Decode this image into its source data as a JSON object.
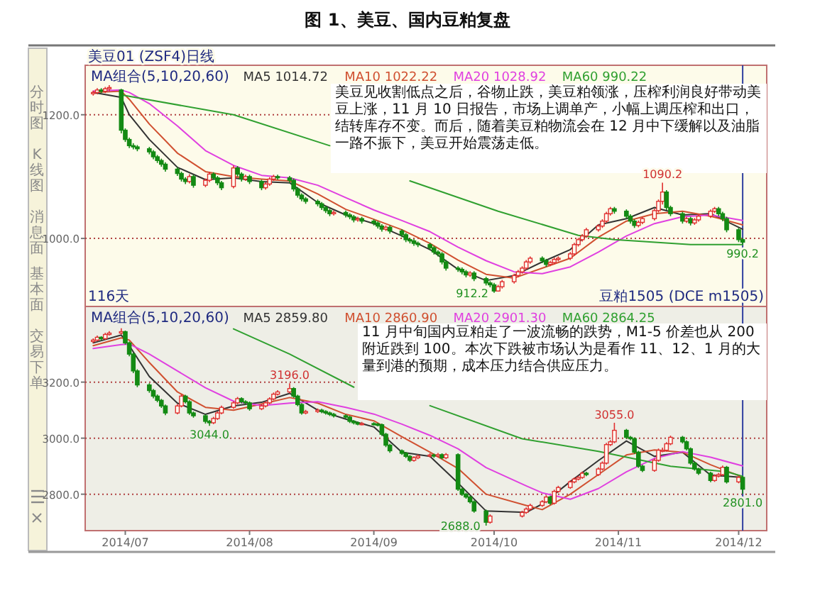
{
  "chart_data": [
    {
      "type": "candlestick",
      "title": "图 1、美豆、国内豆粕复盘",
      "subtitle": "美豆01 (ZSF4)日线",
      "legend_title": "MA组合(5,10,20,60)",
      "legend": "top left",
      "grid": "y",
      "tick_labels": "y",
      "x": [
        "2014-06-23",
        "2014-06-24",
        "2014-06-25",
        "2014-06-26",
        "2014-06-27",
        "2014-06-30",
        "2014-07-01",
        "2014-07-02",
        "2014-07-03",
        "2014-07-04",
        "2014-07-07",
        "2014-07-08",
        "2014-07-09",
        "2014-07-10",
        "2014-07-11",
        "2014-07-14",
        "2014-07-15",
        "2014-07-16",
        "2014-07-17",
        "2014-07-18",
        "2014-07-21",
        "2014-07-22",
        "2014-07-23",
        "2014-07-24",
        "2014-07-25",
        "2014-07-28",
        "2014-07-29",
        "2014-07-30",
        "2014-07-31",
        "2014-08-01",
        "2014-08-04",
        "2014-08-05",
        "2014-08-06",
        "2014-08-07",
        "2014-08-08",
        "2014-08-11",
        "2014-08-12",
        "2014-08-13",
        "2014-08-14",
        "2014-08-15",
        "2014-08-18",
        "2014-08-19",
        "2014-08-20",
        "2014-08-21",
        "2014-08-22",
        "2014-08-25",
        "2014-08-26",
        "2014-08-27",
        "2014-08-28",
        "2014-08-29",
        "2014-09-01",
        "2014-09-02",
        "2014-09-03",
        "2014-09-04",
        "2014-09-05",
        "2014-09-08",
        "2014-09-09",
        "2014-09-10",
        "2014-09-11",
        "2014-09-12",
        "2014-09-15",
        "2014-09-16",
        "2014-09-17",
        "2014-09-18",
        "2014-09-19",
        "2014-09-22",
        "2014-09-23",
        "2014-09-24",
        "2014-09-25",
        "2014-09-26",
        "2014-09-29",
        "2014-09-30",
        "2014-10-01",
        "2014-10-02",
        "2014-10-03",
        "2014-10-06",
        "2014-10-07",
        "2014-10-08",
        "2014-10-09",
        "2014-10-10",
        "2014-10-13",
        "2014-10-14",
        "2014-10-15",
        "2014-10-16",
        "2014-10-17",
        "2014-10-20",
        "2014-10-21",
        "2014-10-22",
        "2014-10-23",
        "2014-10-24",
        "2014-10-27",
        "2014-10-28",
        "2014-10-29",
        "2014-10-30",
        "2014-10-31",
        "2014-11-03",
        "2014-11-04",
        "2014-11-05",
        "2014-11-06",
        "2014-11-07",
        "2014-11-10",
        "2014-11-11",
        "2014-11-12",
        "2014-11-13",
        "2014-11-14",
        "2014-11-17",
        "2014-11-18",
        "2014-11-19",
        "2014-11-20",
        "2014-11-21",
        "2014-11-24",
        "2014-11-25",
        "2014-11-26",
        "2014-11-27",
        "2014-11-28",
        "2014-12-01",
        "2014-12-02"
      ],
      "ohlc": [
        [
          1234,
          1239,
          1231,
          1236
        ],
        [
          1236,
          1243,
          1233,
          1240
        ],
        [
          1240,
          1243,
          1235,
          1238
        ],
        [
          1238,
          1245,
          1235,
          1242
        ],
        [
          1242,
          1248,
          1238,
          1244
        ],
        [
          1240,
          1242,
          1170,
          1175
        ],
        [
          1175,
          1178,
          1156,
          1160
        ],
        [
          1160,
          1163,
          1146,
          1150
        ],
        [
          1150,
          1154,
          1144,
          1148
        ],
        [
          1148,
          1151,
          1141,
          1145
        ],
        [
          1145,
          1148,
          1136,
          1140
        ],
        [
          1140,
          1143,
          1128,
          1132
        ],
        [
          1132,
          1135,
          1122,
          1126
        ],
        [
          1126,
          1129,
          1116,
          1120
        ],
        [
          1120,
          1123,
          1108,
          1112
        ],
        [
          1112,
          1115,
          1101,
          1105
        ],
        [
          1105,
          1108,
          1092,
          1096
        ],
        [
          1096,
          1099,
          1088,
          1092
        ],
        [
          1092,
          1104,
          1089,
          1100
        ],
        [
          1100,
          1103,
          1082,
          1086
        ],
        [
          1086,
          1097,
          1083,
          1094
        ],
        [
          1094,
          1108,
          1091,
          1104
        ],
        [
          1104,
          1107,
          1095,
          1098
        ],
        [
          1098,
          1101,
          1086,
          1090
        ],
        [
          1090,
          1093,
          1078,
          1082
        ],
        [
          1084,
          1118,
          1081,
          1114
        ],
        [
          1114,
          1117,
          1100,
          1104
        ],
        [
          1104,
          1107,
          1092,
          1096
        ],
        [
          1096,
          1103,
          1093,
          1100
        ],
        [
          1100,
          1103,
          1088,
          1092
        ],
        [
          1092,
          1095,
          1078,
          1082
        ],
        [
          1082,
          1091,
          1079,
          1088
        ],
        [
          1088,
          1099,
          1085,
          1096
        ],
        [
          1096,
          1103,
          1093,
          1100
        ],
        [
          1100,
          1103,
          1095,
          1098
        ],
        [
          1098,
          1101,
          1090,
          1094
        ],
        [
          1094,
          1097,
          1076,
          1080
        ],
        [
          1080,
          1083,
          1066,
          1070
        ],
        [
          1070,
          1073,
          1060,
          1064
        ],
        [
          1064,
          1067,
          1056,
          1060
        ],
        [
          1060,
          1063,
          1052,
          1056
        ],
        [
          1056,
          1059,
          1046,
          1050
        ],
        [
          1050,
          1053,
          1041,
          1045
        ],
        [
          1045,
          1048,
          1036,
          1040
        ],
        [
          1040,
          1045,
          1037,
          1042
        ],
        [
          1042,
          1045,
          1034,
          1038
        ],
        [
          1038,
          1041,
          1031,
          1035
        ],
        [
          1035,
          1038,
          1026,
          1030
        ],
        [
          1030,
          1035,
          1027,
          1032
        ],
        [
          1032,
          1035,
          1024,
          1028
        ],
        [
          1028,
          1031,
          1021,
          1025
        ],
        [
          1025,
          1028,
          1016,
          1020
        ],
        [
          1020,
          1023,
          1011,
          1015
        ],
        [
          1015,
          1021,
          1012,
          1018
        ],
        [
          1018,
          1021,
          1008,
          1012
        ],
        [
          1012,
          1015,
          1002,
          1006
        ],
        [
          1006,
          1009,
          994,
          998
        ],
        [
          998,
          1001,
          992,
          996
        ],
        [
          996,
          999,
          988,
          992
        ],
        [
          992,
          995,
          986,
          990
        ],
        [
          990,
          993,
          981,
          985
        ],
        [
          985,
          988,
          974,
          978
        ],
        [
          978,
          981,
          971,
          975
        ],
        [
          975,
          978,
          958,
          962
        ],
        [
          962,
          965,
          948,
          952
        ],
        [
          952,
          955,
          946,
          950
        ],
        [
          950,
          953,
          942,
          946
        ],
        [
          946,
          949,
          937,
          941
        ],
        [
          941,
          947,
          938,
          944
        ],
        [
          944,
          947,
          931,
          935
        ],
        [
          935,
          938,
          924,
          928
        ],
        [
          928,
          931,
          921,
          925
        ],
        [
          925,
          928,
          912.2,
          915
        ],
        [
          915,
          925,
          914,
          922
        ],
        [
          922,
          933,
          919,
          930
        ],
        [
          930,
          943,
          927,
          940
        ],
        [
          940,
          949,
          937,
          946
        ],
        [
          946,
          955,
          943,
          952
        ],
        [
          952,
          965,
          949,
          962
        ],
        [
          962,
          971,
          959,
          968
        ],
        [
          968,
          971,
          960,
          964
        ],
        [
          964,
          967,
          954,
          958
        ],
        [
          958,
          964,
          955,
          961
        ],
        [
          961,
          969,
          958,
          966
        ],
        [
          966,
          971,
          963,
          968
        ],
        [
          968,
          978,
          965,
          975
        ],
        [
          975,
          993,
          972,
          990
        ],
        [
          990,
          1001,
          987,
          998
        ],
        [
          998,
          1007,
          995,
          1004
        ],
        [
          1004,
          1017,
          1001,
          1014
        ],
        [
          1014,
          1023,
          1011,
          1020
        ],
        [
          1020,
          1031,
          1017,
          1028
        ],
        [
          1028,
          1043,
          1025,
          1040
        ],
        [
          1040,
          1051,
          1037,
          1048
        ],
        [
          1048,
          1051,
          1040,
          1044
        ],
        [
          1044,
          1047,
          1032,
          1036
        ],
        [
          1036,
          1039,
          1024,
          1028
        ],
        [
          1028,
          1031,
          1017,
          1021
        ],
        [
          1021,
          1029,
          1018,
          1026
        ],
        [
          1026,
          1035,
          1023,
          1032
        ],
        [
          1032,
          1048,
          1029,
          1045
        ],
        [
          1045,
          1063,
          1042,
          1060
        ],
        [
          1060,
          1090.2,
          1055,
          1075
        ],
        [
          1075,
          1078,
          1046,
          1050
        ],
        [
          1050,
          1053,
          1036,
          1040
        ],
        [
          1040,
          1043,
          1024,
          1028
        ],
        [
          1028,
          1035,
          1025,
          1032
        ],
        [
          1032,
          1035,
          1021,
          1025
        ],
        [
          1025,
          1033,
          1022,
          1030
        ],
        [
          1030,
          1039,
          1027,
          1036
        ],
        [
          1036,
          1047,
          1033,
          1044
        ],
        [
          1044,
          1051,
          1041,
          1048
        ],
        [
          1048,
          1051,
          1036,
          1040
        ],
        [
          1040,
          1043,
          1028,
          1032
        ],
        [
          1032,
          1035,
          1010,
          1014
        ],
        [
          1014,
          1017,
          994,
          998
        ],
        [
          998,
          1001,
          990.2,
          994
        ]
      ],
      "xticks": [
        {
          "value": "2014-07-01",
          "label": null
        },
        {
          "value": "2014-08-01",
          "label": null
        },
        {
          "value": "2014-09-01",
          "label": null
        },
        {
          "value": "2014-10-01",
          "label": null
        },
        {
          "value": "2014-11-01",
          "label": null
        },
        {
          "value": "2014-12-01",
          "label": null
        }
      ],
      "series": [
        {
          "type": "line",
          "name": "MA5 1014.72",
          "color": "#333333",
          "x": [
            "2014-06-23",
            "2014-06-30",
            "2014-07-02",
            "2014-07-07",
            "2014-07-14",
            "2014-07-21",
            "2014-07-28",
            "2014-08-04",
            "2014-08-11",
            "2014-08-18",
            "2014-08-25",
            "2014-09-01",
            "2014-09-08",
            "2014-09-15",
            "2014-09-22",
            "2014-09-29",
            "2014-10-06",
            "2014-10-13",
            "2014-10-20",
            "2014-10-27",
            "2014-11-03",
            "2014-11-10",
            "2014-11-17",
            "2014-11-24",
            "2014-12-02"
          ],
          "values": [
            1236,
            1228,
            1200,
            1160,
            1115,
            1095,
            1098,
            1092,
            1090,
            1058,
            1038,
            1024,
            1004,
            982,
            950,
            932,
            940,
            962,
            982,
            1022,
            1032,
            1050,
            1038,
            1040,
            1015
          ]
        },
        {
          "type": "line",
          "name": "MA10 1022.22",
          "color": "#d05030",
          "x": [
            "2014-06-23",
            "2014-06-30",
            "2014-07-02",
            "2014-07-07",
            "2014-07-14",
            "2014-07-21",
            "2014-07-28",
            "2014-08-04",
            "2014-08-11",
            "2014-08-18",
            "2014-08-25",
            "2014-09-01",
            "2014-09-08",
            "2014-09-15",
            "2014-09-22",
            "2014-09-29",
            "2014-10-06",
            "2014-10-13",
            "2014-10-20",
            "2014-10-27",
            "2014-11-03",
            "2014-11-10",
            "2014-11-17",
            "2014-11-24",
            "2014-12-02"
          ],
          "values": [
            1236,
            1238,
            1225,
            1185,
            1138,
            1108,
            1100,
            1096,
            1093,
            1072,
            1047,
            1031,
            1014,
            992,
            965,
            942,
            936,
            952,
            968,
            1002,
            1028,
            1040,
            1044,
            1036,
            1022
          ]
        },
        {
          "type": "line",
          "name": "MA20 1028.92",
          "color": "#e040e0",
          "x": [
            "2014-06-23",
            "2014-06-30",
            "2014-07-02",
            "2014-07-07",
            "2014-07-14",
            "2014-07-21",
            "2014-07-28",
            "2014-08-04",
            "2014-08-11",
            "2014-08-18",
            "2014-08-25",
            "2014-09-01",
            "2014-09-08",
            "2014-09-15",
            "2014-09-22",
            "2014-09-29",
            "2014-10-06",
            "2014-10-13",
            "2014-10-20",
            "2014-10-27",
            "2014-11-03",
            "2014-11-10",
            "2014-11-17",
            "2014-11-24",
            "2014-12-02"
          ],
          "values": [
            1238,
            1240,
            1236,
            1218,
            1182,
            1142,
            1118,
            1102,
            1098,
            1086,
            1066,
            1046,
            1029,
            1011,
            986,
            964,
            946,
            943,
            954,
            978,
            1004,
            1024,
            1035,
            1038,
            1029
          ]
        },
        {
          "type": "line",
          "name": "MA60 990.22",
          "color": "#30a030",
          "x": [
            "2014-06-30",
            "2014-07-28",
            "2014-08-21",
            "2014-08-25",
            "2014-09-10",
            "2014-10-02",
            "2014-10-22",
            "2014-10-31",
            "2014-11-19",
            "2014-12-02"
          ],
          "values": [
            1232,
            1200,
            1150,
            null,
            1093,
            1044,
            1005,
            998,
            990,
            990
          ]
        }
      ],
      "xlim": [
        "2014-06-21",
        "2014-12-08"
      ],
      "ylim": [
        890,
        1280
      ],
      "yticks": [
        {
          "value": 1000,
          "label": "1000.0"
        },
        {
          "value": 1200,
          "label": "1200.0"
        }
      ],
      "ref_lines": [
        {
          "axis": "x",
          "value": "2014-12-02",
          "color": "#3040a0"
        }
      ],
      "annotations": [
        "美豆见收割低点之后，谷物止跌，美豆粕领涨，压榨利润良好带动美豆上涨，11 月 10 日报告，市场上调单产，小幅上调压榨和出口，结转库存不变。而后，随着美豆粕物流会在 12 月中下缓解以及油脂一路不振下，美豆开始震荡走低。",
        "116天",
        "分时图",
        "K线图",
        "消息面",
        "基本面",
        {
          "text": "1090.2",
          "x": "2014-11-12",
          "y": 1090.2
        },
        {
          "text": "912.2",
          "x": "2014-10-01",
          "y": 912.2
        },
        {
          "text": "990.2",
          "x": "2014-12-02",
          "y": 990.2
        }
      ]
    },
    {
      "type": "candlestick",
      "subtitle": "豆粕1505 (DCE m1505)",
      "legend_title": "MA组合(5,10,20,60)",
      "legend": "top left",
      "grid": "y",
      "x": [
        "2014-06-23",
        "2014-06-24",
        "2014-06-25",
        "2014-06-26",
        "2014-06-27",
        "2014-06-30",
        "2014-07-01",
        "2014-07-02",
        "2014-07-03",
        "2014-07-04",
        "2014-07-07",
        "2014-07-08",
        "2014-07-09",
        "2014-07-10",
        "2014-07-11",
        "2014-07-14",
        "2014-07-15",
        "2014-07-16",
        "2014-07-17",
        "2014-07-18",
        "2014-07-21",
        "2014-07-22",
        "2014-07-23",
        "2014-07-24",
        "2014-07-25",
        "2014-07-28",
        "2014-07-29",
        "2014-07-30",
        "2014-07-31",
        "2014-08-01",
        "2014-08-04",
        "2014-08-05",
        "2014-08-06",
        "2014-08-07",
        "2014-08-08",
        "2014-08-11",
        "2014-08-12",
        "2014-08-13",
        "2014-08-14",
        "2014-08-15",
        "2014-08-18",
        "2014-08-19",
        "2014-08-20",
        "2014-08-21",
        "2014-08-22",
        "2014-08-25",
        "2014-08-26",
        "2014-08-27",
        "2014-08-28",
        "2014-08-29",
        "2014-09-01",
        "2014-09-02",
        "2014-09-03",
        "2014-09-04",
        "2014-09-05",
        "2014-09-08",
        "2014-09-09",
        "2014-09-10",
        "2014-09-11",
        "2014-09-12",
        "2014-09-15",
        "2014-09-16",
        "2014-09-17",
        "2014-09-18",
        "2014-09-19",
        "2014-09-22",
        "2014-09-23",
        "2014-09-24",
        "2014-09-25",
        "2014-09-26",
        "2014-09-29",
        "2014-09-30",
        "2014-10-08",
        "2014-10-09",
        "2014-10-10",
        "2014-10-13",
        "2014-10-14",
        "2014-10-15",
        "2014-10-16",
        "2014-10-17",
        "2014-10-20",
        "2014-10-21",
        "2014-10-22",
        "2014-10-23",
        "2014-10-24",
        "2014-10-27",
        "2014-10-28",
        "2014-10-29",
        "2014-10-30",
        "2014-10-31",
        "2014-11-03",
        "2014-11-04",
        "2014-11-05",
        "2014-11-06",
        "2014-11-07",
        "2014-11-10",
        "2014-11-11",
        "2014-11-12",
        "2014-11-13",
        "2014-11-14",
        "2014-11-17",
        "2014-11-18",
        "2014-11-19",
        "2014-11-20",
        "2014-11-21",
        "2014-11-24",
        "2014-11-25",
        "2014-11-26",
        "2014-11-27",
        "2014-11-28",
        "2014-12-01",
        "2014-12-02"
      ],
      "ohlc": [
        [
          3345,
          3356,
          3340,
          3350
        ],
        [
          3350,
          3366,
          3346,
          3360
        ],
        [
          3360,
          3364,
          3348,
          3355
        ],
        [
          3355,
          3376,
          3351,
          3370
        ],
        [
          3370,
          3382,
          3366,
          3375
        ],
        [
          3375,
          3392,
          3370,
          3380
        ],
        [
          3380,
          3384,
          3334,
          3340
        ],
        [
          3340,
          3345,
          3292,
          3300
        ],
        [
          3300,
          3305,
          3232,
          3240
        ],
        [
          3240,
          3246,
          3182,
          3190
        ],
        [
          3190,
          3196,
          3162,
          3170
        ],
        [
          3170,
          3176,
          3142,
          3150
        ],
        [
          3150,
          3156,
          3128,
          3135
        ],
        [
          3135,
          3140,
          3108,
          3115
        ],
        [
          3115,
          3120,
          3082,
          3090
        ],
        [
          3090,
          3122,
          3085,
          3115
        ],
        [
          3115,
          3156,
          3110,
          3150
        ],
        [
          3150,
          3155,
          3124,
          3130
        ],
        [
          3130,
          3135,
          3083,
          3090
        ],
        [
          3090,
          3095,
          3073,
          3080
        ],
        [
          3080,
          3085,
          3052,
          3060
        ],
        [
          3060,
          3065,
          3044,
          3055
        ],
        [
          3055,
          3076,
          3050,
          3070
        ],
        [
          3070,
          3096,
          3065,
          3090
        ],
        [
          3090,
          3116,
          3085,
          3110
        ],
        [
          3110,
          3132,
          3105,
          3126
        ],
        [
          3126,
          3147,
          3121,
          3141
        ],
        [
          3141,
          3146,
          3124,
          3130
        ],
        [
          3130,
          3135,
          3120,
          3126
        ],
        [
          3126,
          3131,
          3098,
          3105
        ],
        [
          3105,
          3121,
          3100,
          3115
        ],
        [
          3115,
          3132,
          3110,
          3126
        ],
        [
          3126,
          3146,
          3121,
          3140
        ],
        [
          3140,
          3163,
          3135,
          3157
        ],
        [
          3157,
          3171,
          3152,
          3165
        ],
        [
          3165,
          3196,
          3160,
          3177
        ],
        [
          3177,
          3182,
          3144,
          3150
        ],
        [
          3150,
          3155,
          3114,
          3120
        ],
        [
          3120,
          3125,
          3084,
          3090
        ],
        [
          3090,
          3101,
          3085,
          3095
        ],
        [
          3095,
          3106,
          3090,
          3100
        ],
        [
          3100,
          3105,
          3089,
          3095
        ],
        [
          3095,
          3100,
          3084,
          3090
        ],
        [
          3090,
          3095,
          3079,
          3085
        ],
        [
          3085,
          3090,
          3074,
          3080
        ],
        [
          3080,
          3085,
          3069,
          3075
        ],
        [
          3075,
          3080,
          3054,
          3060
        ],
        [
          3060,
          3065,
          3049,
          3055
        ],
        [
          3055,
          3060,
          3046,
          3050
        ],
        [
          3050,
          3058,
          3046,
          3052
        ],
        [
          3052,
          3057,
          3045,
          3050
        ],
        [
          3050,
          3055,
          3042,
          3048
        ],
        [
          3048,
          3052,
          3008,
          3014
        ],
        [
          3014,
          3019,
          2968,
          2975
        ],
        [
          2975,
          2980,
          2948,
          2955
        ],
        [
          2955,
          2960,
          2940,
          2946
        ],
        [
          2946,
          2951,
          2929,
          2935
        ],
        [
          2935,
          2940,
          2915,
          2921
        ],
        [
          2921,
          2936,
          2916,
          2930
        ],
        [
          2930,
          2942,
          2925,
          2936
        ],
        [
          2936,
          2946,
          2931,
          2940
        ],
        [
          2940,
          2945,
          2930,
          2936
        ],
        [
          2936,
          2947,
          2931,
          2941
        ],
        [
          2941,
          2946,
          2925,
          2930
        ],
        [
          2930,
          2947,
          2925,
          2941
        ],
        [
          2941,
          2946,
          2812,
          2818
        ],
        [
          2818,
          2823,
          2794,
          2800
        ],
        [
          2800,
          2805,
          2784,
          2790
        ],
        [
          2790,
          2795,
          2767,
          2773
        ],
        [
          2773,
          2778,
          2734,
          2740
        ],
        [
          2740,
          2745,
          2688,
          2700
        ],
        [
          2700,
          2728,
          2695,
          2722
        ],
        [
          2722,
          2741,
          2717,
          2735
        ],
        [
          2735,
          2753,
          2730,
          2747
        ],
        [
          2747,
          2766,
          2742,
          2760
        ],
        [
          2760,
          2779,
          2755,
          2773
        ],
        [
          2773,
          2796,
          2768,
          2790
        ],
        [
          2790,
          2795,
          2762,
          2768
        ],
        [
          2768,
          2816,
          2763,
          2810
        ],
        [
          2810,
          2830,
          2805,
          2824
        ],
        [
          2824,
          2850,
          2819,
          2844
        ],
        [
          2844,
          2860,
          2839,
          2854
        ],
        [
          2854,
          2866,
          2849,
          2860
        ],
        [
          2860,
          2881,
          2855,
          2875
        ],
        [
          2875,
          2880,
          2864,
          2870
        ],
        [
          2870,
          2896,
          2865,
          2890
        ],
        [
          2890,
          2917,
          2885,
          2911
        ],
        [
          2911,
          2983,
          2906,
          2977
        ],
        [
          2977,
          2993,
          2972,
          2987
        ],
        [
          2987,
          3055,
          2982,
          3028
        ],
        [
          3028,
          3033,
          2997,
          3003
        ],
        [
          3003,
          3008,
          2992,
          2998
        ],
        [
          2998,
          3003,
          2944,
          2950
        ],
        [
          2950,
          2955,
          2894,
          2900
        ],
        [
          2900,
          2905,
          2879,
          2885
        ],
        [
          2885,
          2927,
          2880,
          2921
        ],
        [
          2921,
          2963,
          2916,
          2957
        ],
        [
          2957,
          2966,
          2950,
          2957
        ],
        [
          2957,
          2986,
          2952,
          2980
        ],
        [
          2980,
          3009,
          2975,
          3003
        ],
        [
          3003,
          3008,
          2981,
          2987
        ],
        [
          2987,
          2992,
          2956,
          2962
        ],
        [
          2962,
          2967,
          2905,
          2911
        ],
        [
          2911,
          2916,
          2884,
          2890
        ],
        [
          2890,
          2895,
          2869,
          2875
        ],
        [
          2875,
          2880,
          2843,
          2849
        ],
        [
          2849,
          2871,
          2844,
          2865
        ],
        [
          2865,
          2876,
          2860,
          2870
        ],
        [
          2870,
          2902,
          2865,
          2896
        ],
        [
          2896,
          2901,
          2838,
          2844
        ],
        [
          2844,
          2866,
          2839,
          2860
        ],
        [
          2860,
          2865,
          2801,
          2818
        ]
      ],
      "series": [
        {
          "type": "line",
          "name": "MA5 2859.80",
          "color": "#333333",
          "x": [
            "2014-06-23",
            "2014-06-30",
            "2014-07-02",
            "2014-07-07",
            "2014-07-14",
            "2014-07-21",
            "2014-07-28",
            "2014-08-04",
            "2014-08-11",
            "2014-08-18",
            "2014-08-25",
            "2014-09-01",
            "2014-09-08",
            "2014-09-15",
            "2014-09-22",
            "2014-09-29",
            "2014-10-09",
            "2014-10-13",
            "2014-10-20",
            "2014-10-27",
            "2014-11-03",
            "2014-11-10",
            "2014-11-17",
            "2014-11-24",
            "2014-12-02"
          ],
          "values": [
            3340,
            3368,
            3330,
            3220,
            3125,
            3085,
            3115,
            3128,
            3160,
            3100,
            3068,
            3040,
            2950,
            2935,
            2840,
            2740,
            2735,
            2765,
            2845,
            2920,
            2990,
            2935,
            2950,
            2868,
            2860
          ]
        },
        {
          "type": "line",
          "name": "MA10 2860.90",
          "color": "#d05030",
          "x": [
            "2014-06-23",
            "2014-06-30",
            "2014-07-02",
            "2014-07-07",
            "2014-07-14",
            "2014-07-21",
            "2014-07-28",
            "2014-08-04",
            "2014-08-11",
            "2014-08-18",
            "2014-08-25",
            "2014-09-01",
            "2014-09-08",
            "2014-09-15",
            "2014-09-22",
            "2014-09-29",
            "2014-10-09",
            "2014-10-13",
            "2014-10-20",
            "2014-10-27",
            "2014-11-03",
            "2014-11-10",
            "2014-11-17",
            "2014-11-24",
            "2014-12-02"
          ],
          "values": [
            3330,
            3358,
            3350,
            3270,
            3165,
            3110,
            3100,
            3122,
            3145,
            3125,
            3085,
            3062,
            3005,
            2950,
            2892,
            2800,
            2760,
            2745,
            2800,
            2870,
            2940,
            2958,
            2950,
            2905,
            2861
          ]
        },
        {
          "type": "line",
          "name": "MA20 2901.30",
          "color": "#e040e0",
          "x": [
            "2014-06-23",
            "2014-06-30",
            "2014-07-02",
            "2014-07-07",
            "2014-07-14",
            "2014-07-21",
            "2014-07-28",
            "2014-08-04",
            "2014-08-11",
            "2014-08-18",
            "2014-08-25",
            "2014-09-01",
            "2014-09-08",
            "2014-09-15",
            "2014-09-22",
            "2014-09-29",
            "2014-10-09",
            "2014-10-13",
            "2014-10-20",
            "2014-10-27",
            "2014-11-03",
            "2014-11-10",
            "2014-11-17",
            "2014-11-24",
            "2014-12-02"
          ],
          "values": [
            3320,
            3334,
            3336,
            3300,
            3240,
            3180,
            3132,
            3116,
            3125,
            3130,
            3110,
            3086,
            3050,
            3010,
            2962,
            2895,
            2830,
            2805,
            2782,
            2820,
            2880,
            2928,
            2952,
            2932,
            2901
          ]
        },
        {
          "type": "line",
          "name": "MA60 2864.25",
          "color": "#30a030",
          "x": [
            "2014-07-28",
            "2014-08-11",
            "2014-08-27",
            "2014-08-28",
            "2014-09-15",
            "2014-10-08",
            "2014-10-27",
            "2014-11-14",
            "2014-11-28",
            "2014-12-02"
          ],
          "values": [
            3390,
            3300,
            3182,
            null,
            3116,
            2998,
            2953,
            2900,
            2880,
            2864
          ]
        }
      ],
      "xlim": [
        "2014-06-21",
        "2014-12-08"
      ],
      "xticks": [
        {
          "value": "2014-07-01",
          "label": "2014/07"
        },
        {
          "value": "2014-08-01",
          "label": "2014/08"
        },
        {
          "value": "2014-09-01",
          "label": "2014/09"
        },
        {
          "value": "2014-10-01",
          "label": "2014/10"
        },
        {
          "value": "2014-11-01",
          "label": "2014/11"
        },
        {
          "value": "2014-12-01",
          "label": "2014/12"
        }
      ],
      "ylim": [
        2670,
        3470
      ],
      "yticks": [
        {
          "value": 2800,
          "label": "2800.0"
        },
        {
          "value": 3000,
          "label": "3000.0"
        },
        {
          "value": 3200,
          "label": "3200.0"
        }
      ],
      "ref_lines": [
        {
          "axis": "x",
          "value": "2014-12-02",
          "color": "#3040a0"
        }
      ],
      "annotations": [
        "11 月中旬国内豆粕走了一波流畅的跌势，M1-5 价差也从 200 附近跌到 100。本次下跌被市场认为是看作 11、12、1 月的大量到港的预期，成本压力结合供应压力。",
        "交易下单",
        {
          "text": "3196.0",
          "x": "2014-08-11",
          "y": 3196
        },
        {
          "text": "3044.0",
          "x": "2014-07-22",
          "y": 3044
        },
        {
          "text": "2688.0",
          "x": "2014-09-29",
          "y": 2688
        },
        {
          "text": "3055.0",
          "x": "2014-10-31",
          "y": 3055
        },
        {
          "text": "2801.0",
          "x": "2014-12-02",
          "y": 2801
        }
      ]
    }
  ]
}
